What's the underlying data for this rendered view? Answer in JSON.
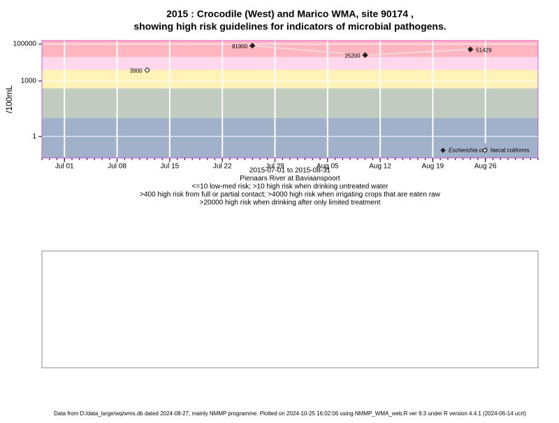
{
  "chart_data": {
    "type": "scatter",
    "title": "2015 : Crocodile (West) and Marico WMA, site 90174 ,",
    "subtitle": "showing high risk guidelines for indicators of microbial pathogens.",
    "y_label": "/100mL",
    "x_label_lines": [
      "2015-07-01 to 2015-08-31",
      "Pienaars River at Baviaanspoort",
      "<=10 low-med risk; >10 high risk when drinking untreated water",
      ">400 high risk from full or partial contact; >4000 high risk when irrigating crops that are eaten raw",
      ">20000 high risk when drinking after only limited treatment"
    ],
    "footer": "Data from D:/data_large/wq/wms.db dated 2024-08-27, mainly NMMP programme. Plotted on 2024-10-25 16:02:06 using NMMP_WMA_web.R ver 9.3 under R version 4.4.1 (2024-06-14 ucrt)",
    "log_y": true,
    "ylim": [
      0.068,
      155000
    ],
    "yticks": [
      1,
      1000,
      100000
    ],
    "xlim": [
      "2015-06-28",
      "2015-09-02"
    ],
    "xticks": [
      {
        "value": "2015-07-01",
        "label": "Jul 01"
      },
      {
        "value": "2015-07-08",
        "label": "Jul 08"
      },
      {
        "value": "2015-07-15",
        "label": "Jul 15"
      },
      {
        "value": "2015-07-22",
        "label": "Jul 22"
      },
      {
        "value": "2015-07-29",
        "label": "Jul 29"
      },
      {
        "value": "2015-08-05",
        "label": "Aug 05"
      },
      {
        "value": "2015-08-12",
        "label": "Aug 12"
      },
      {
        "value": "2015-08-19",
        "label": "Aug 19"
      },
      {
        "value": "2015-08-26",
        "label": "Aug 26"
      }
    ],
    "bands": [
      {
        "from": 20000,
        "color": "#ffb6c1"
      },
      {
        "from": 4000,
        "color": "#ffd8ee"
      },
      {
        "from": 400,
        "color": "#fff3b8"
      },
      {
        "from": 10,
        "color": "#c2cbbf"
      },
      {
        "from": 0.068,
        "color": "#a2b1ca"
      }
    ],
    "legend_position": "bottom-right",
    "series": [
      {
        "name": "Escherichia coli",
        "color": "#222222",
        "marker": "filled",
        "x": [
          "2015-07-26",
          "2015-08-10",
          "2015-08-24"
        ],
        "values": [
          81900,
          25200,
          51429
        ]
      },
      {
        "name": "faecal coliforms",
        "color": "#222222",
        "marker": "open",
        "x": [
          "2015-07-12"
        ],
        "values": [
          3900
        ]
      }
    ]
  }
}
